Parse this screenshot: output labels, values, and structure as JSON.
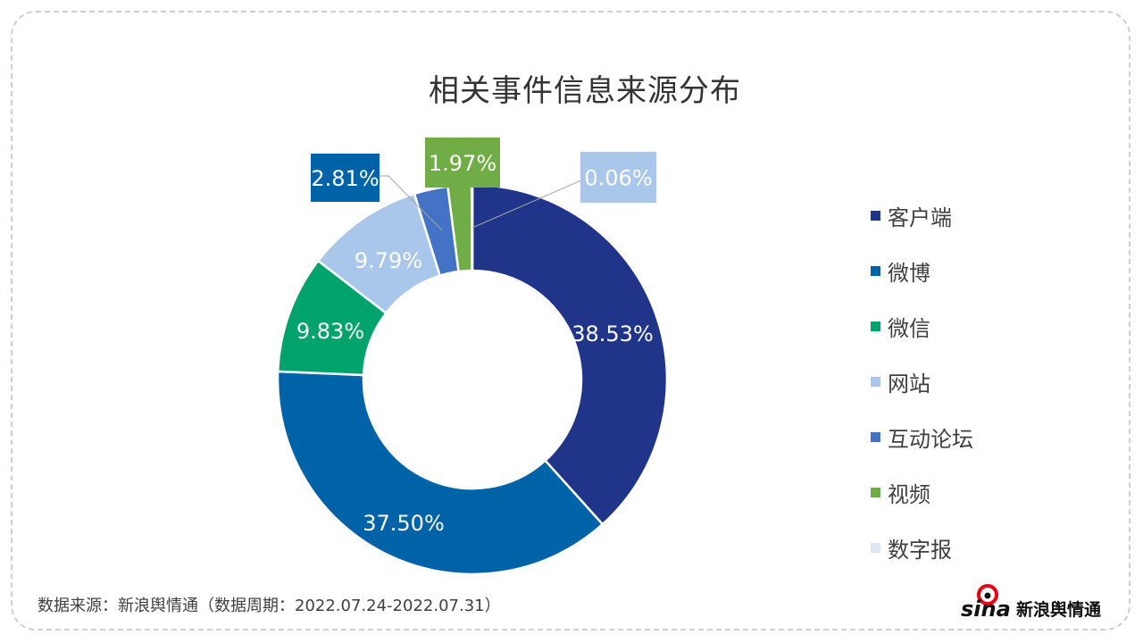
{
  "chart_data": {
    "type": "pie",
    "variant": "donut",
    "title": "相关事件信息来源分布",
    "categories": [
      "客户端",
      "微博",
      "微信",
      "网站",
      "互动论坛",
      "视频",
      "数字报"
    ],
    "values": [
      38.53,
      37.5,
      9.83,
      9.79,
      2.81,
      1.97,
      0.06
    ],
    "labels": [
      "38.53%",
      "37.50%",
      "9.83%",
      "9.79%",
      "2.81%",
      "1.97%",
      "0.06%"
    ],
    "colors": [
      "#203589",
      "#0063a8",
      "#00a36c",
      "#a9c7ea",
      "#4472c4",
      "#70ad47",
      "#dde8f5"
    ],
    "start": "top, clockwise",
    "legend_position": "right"
  },
  "footer": {
    "source": "数据来源：新浪舆情通（数据周期：2022.07.24-2022.07.31）",
    "logo_text": "sina新浪舆情通"
  }
}
